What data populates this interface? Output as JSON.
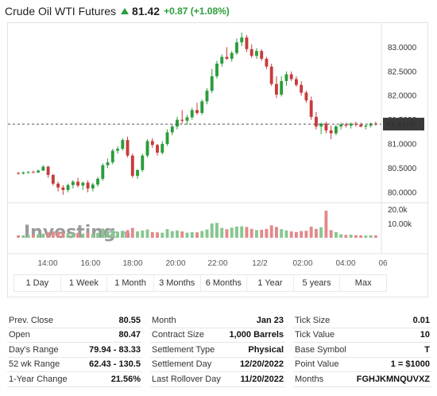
{
  "header": {
    "title": "Crude Oil WTI Futures",
    "price": "81.42",
    "change": "+0.87 (+1.08%)"
  },
  "colors": {
    "up": "#2a9d3b",
    "down": "#c83b3b",
    "vol_up": "#86c78f",
    "vol_down": "#e3888a"
  },
  "watermark": {
    "brand": "Investing",
    "suffix": ".com"
  },
  "chart_data": {
    "type": "candlestick",
    "y_ticks": [
      "83.0000",
      "82.5000",
      "82.0000",
      "81.5000",
      "81.0000",
      "80.5000",
      "80.0000"
    ],
    "y_range": [
      79.85,
      83.4
    ],
    "current_price_label": "81.4100",
    "current_price": 81.41,
    "volume_ticks": [
      "20.0k",
      "10.00k"
    ],
    "x_ticks": [
      "14:00",
      "16:00",
      "18:00",
      "20:00",
      "22:00",
      "12/2",
      "02:00",
      "04:00",
      "06"
    ],
    "candles": [
      [
        80.4,
        80.42,
        80.37,
        80.39,
        1500
      ],
      [
        80.39,
        80.43,
        80.37,
        80.41,
        1600
      ],
      [
        80.41,
        80.44,
        80.39,
        80.42,
        1700
      ],
      [
        80.42,
        80.45,
        80.4,
        80.41,
        1900
      ],
      [
        80.41,
        80.47,
        80.4,
        80.45,
        2200
      ],
      [
        80.45,
        80.56,
        80.44,
        80.53,
        2600
      ],
      [
        80.53,
        80.55,
        80.3,
        80.36,
        3400
      ],
      [
        80.36,
        80.38,
        80.14,
        80.18,
        4000
      ],
      [
        80.18,
        80.22,
        80.02,
        80.1,
        3600
      ],
      [
        80.1,
        80.15,
        79.95,
        80.05,
        3200
      ],
      [
        80.05,
        80.18,
        80.0,
        80.15,
        2800
      ],
      [
        80.15,
        80.25,
        80.08,
        80.22,
        2900
      ],
      [
        80.22,
        80.3,
        80.1,
        80.14,
        3100
      ],
      [
        80.14,
        80.22,
        80.05,
        80.2,
        2600
      ],
      [
        80.2,
        80.25,
        80.0,
        80.08,
        3300
      ],
      [
        80.08,
        80.2,
        80.02,
        80.16,
        2400
      ],
      [
        80.16,
        80.32,
        80.12,
        80.28,
        3000
      ],
      [
        80.28,
        80.6,
        80.24,
        80.56,
        5800
      ],
      [
        80.56,
        80.7,
        80.5,
        80.62,
        4200
      ],
      [
        80.62,
        80.9,
        80.58,
        80.86,
        5000
      ],
      [
        80.86,
        80.95,
        80.8,
        80.9,
        3800
      ],
      [
        80.9,
        81.12,
        80.86,
        81.08,
        4400
      ],
      [
        81.08,
        81.15,
        80.72,
        80.76,
        4800
      ],
      [
        80.76,
        80.8,
        80.3,
        80.34,
        6200
      ],
      [
        80.34,
        80.48,
        80.28,
        80.46,
        4000
      ],
      [
        80.46,
        80.8,
        80.42,
        80.76,
        4600
      ],
      [
        80.76,
        81.1,
        80.72,
        81.06,
        5200
      ],
      [
        81.06,
        81.12,
        80.92,
        80.98,
        3600
      ],
      [
        80.98,
        81.0,
        80.76,
        80.82,
        3400
      ],
      [
        80.82,
        81.06,
        80.78,
        81.0,
        3200
      ],
      [
        81.0,
        81.3,
        80.96,
        81.24,
        5400
      ],
      [
        81.24,
        81.4,
        81.18,
        81.36,
        4200
      ],
      [
        81.36,
        81.56,
        81.3,
        81.5,
        4600
      ],
      [
        81.5,
        81.7,
        81.42,
        81.48,
        4000
      ],
      [
        81.48,
        81.6,
        81.4,
        81.55,
        3200
      ],
      [
        81.55,
        81.75,
        81.5,
        81.7,
        3600
      ],
      [
        81.7,
        81.85,
        81.6,
        81.64,
        3400
      ],
      [
        81.64,
        81.92,
        81.6,
        81.88,
        4200
      ],
      [
        81.88,
        82.15,
        81.82,
        82.1,
        5200
      ],
      [
        82.1,
        82.55,
        82.05,
        82.4,
        9000
      ],
      [
        82.4,
        82.72,
        82.35,
        82.66,
        9400
      ],
      [
        82.66,
        82.85,
        82.6,
        82.8,
        6200
      ],
      [
        82.8,
        83.0,
        82.74,
        82.76,
        5400
      ],
      [
        82.76,
        82.92,
        82.7,
        82.88,
        6400
      ],
      [
        82.88,
        83.18,
        82.84,
        83.1,
        7000
      ],
      [
        83.1,
        83.3,
        83.02,
        83.2,
        7200
      ],
      [
        83.2,
        83.25,
        82.9,
        82.96,
        6800
      ],
      [
        82.96,
        83.06,
        82.78,
        82.82,
        5600
      ],
      [
        82.82,
        82.98,
        82.76,
        82.92,
        4800
      ],
      [
        82.92,
        82.96,
        82.72,
        82.76,
        5000
      ],
      [
        82.76,
        82.8,
        82.55,
        82.6,
        5600
      ],
      [
        82.6,
        82.66,
        82.2,
        82.24,
        7800
      ],
      [
        82.24,
        82.4,
        81.95,
        82.02,
        6800
      ],
      [
        82.02,
        82.4,
        81.98,
        82.3,
        5400
      ],
      [
        82.3,
        82.5,
        82.2,
        82.44,
        4600
      ],
      [
        82.44,
        82.5,
        82.3,
        82.34,
        4000
      ],
      [
        82.34,
        82.4,
        82.18,
        82.22,
        3600
      ],
      [
        82.22,
        82.3,
        82.0,
        82.06,
        4200
      ],
      [
        82.06,
        82.1,
        81.85,
        81.9,
        4400
      ],
      [
        81.9,
        81.98,
        81.5,
        81.56,
        7000
      ],
      [
        81.56,
        81.66,
        81.3,
        81.36,
        5600
      ],
      [
        81.36,
        81.44,
        81.2,
        81.42,
        6600
      ],
      [
        81.42,
        81.46,
        81.22,
        81.28,
        17000
      ],
      [
        81.28,
        81.38,
        81.1,
        81.22,
        4800
      ],
      [
        81.22,
        81.4,
        81.18,
        81.36,
        3600
      ],
      [
        81.36,
        81.44,
        81.3,
        81.4,
        2200
      ],
      [
        81.4,
        81.44,
        81.34,
        81.38,
        1800
      ],
      [
        81.38,
        81.44,
        81.32,
        81.42,
        2000
      ],
      [
        81.42,
        81.46,
        81.36,
        81.4,
        1600
      ],
      [
        81.4,
        81.44,
        81.34,
        81.36,
        1500
      ],
      [
        81.36,
        81.4,
        81.3,
        81.38,
        1400
      ],
      [
        81.38,
        81.44,
        81.34,
        81.42,
        1600
      ],
      [
        81.42,
        81.46,
        81.38,
        81.41,
        1500
      ]
    ]
  },
  "ranges": [
    "1 Day",
    "1 Week",
    "1 Month",
    "3 Months",
    "6 Months",
    "1 Year",
    "5 years",
    "Max"
  ],
  "stats": {
    "col1": [
      {
        "label": "Prev. Close",
        "value": "80.55"
      },
      {
        "label": "Open",
        "value": "80.47"
      },
      {
        "label": "Day's Range",
        "value": "79.94 - 83.33"
      },
      {
        "label": "52 wk Range",
        "value": "62.43 - 130.5"
      },
      {
        "label": "1-Year Change",
        "value": "21.56%"
      }
    ],
    "col2": [
      {
        "label": "Month",
        "value": "Jan 23"
      },
      {
        "label": "Contract Size",
        "value": "1,000 Barrels"
      },
      {
        "label": "Settlement Type",
        "value": "Physical"
      },
      {
        "label": "Settlement Day",
        "value": "12/20/2022"
      },
      {
        "label": "Last Rollover Day",
        "value": "11/20/2022"
      }
    ],
    "col3": [
      {
        "label": "Tick Size",
        "value": "0.01"
      },
      {
        "label": "Tick Value",
        "value": "10"
      },
      {
        "label": "Base Symbol",
        "value": "T"
      },
      {
        "label": "Point Value",
        "value": "1 = $1000"
      },
      {
        "label": "Months",
        "value": "FGHJKMNQUVXZ"
      }
    ]
  }
}
